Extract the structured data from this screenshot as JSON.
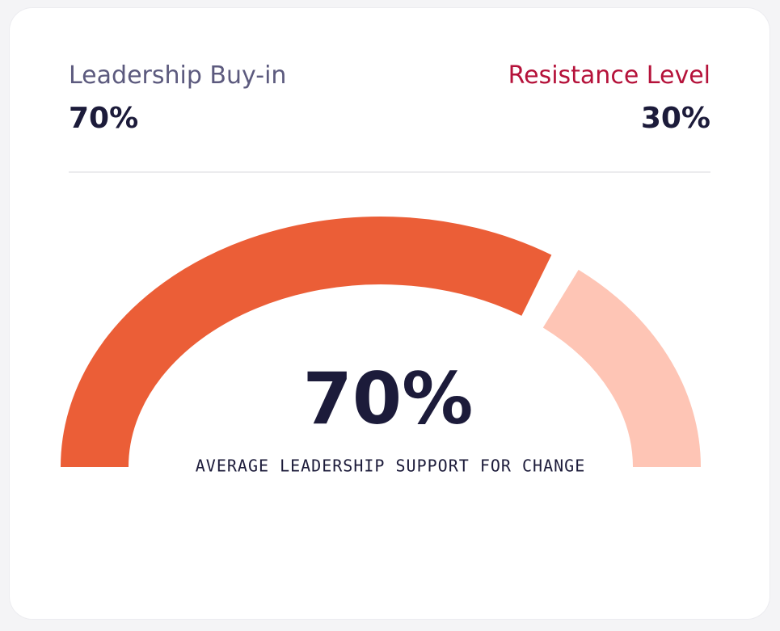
{
  "chart_data": {
    "type": "gauge",
    "categories": [
      "Leadership Buy-in",
      "Resistance Level"
    ],
    "values": [
      70,
      30
    ],
    "value_labels": [
      "70%",
      "30%"
    ],
    "colors": [
      "#eb5e37",
      "#fec5b5"
    ],
    "subtitle": "AVERAGE LEADERSHIP SUPPORT FOR CHANGE"
  }
}
